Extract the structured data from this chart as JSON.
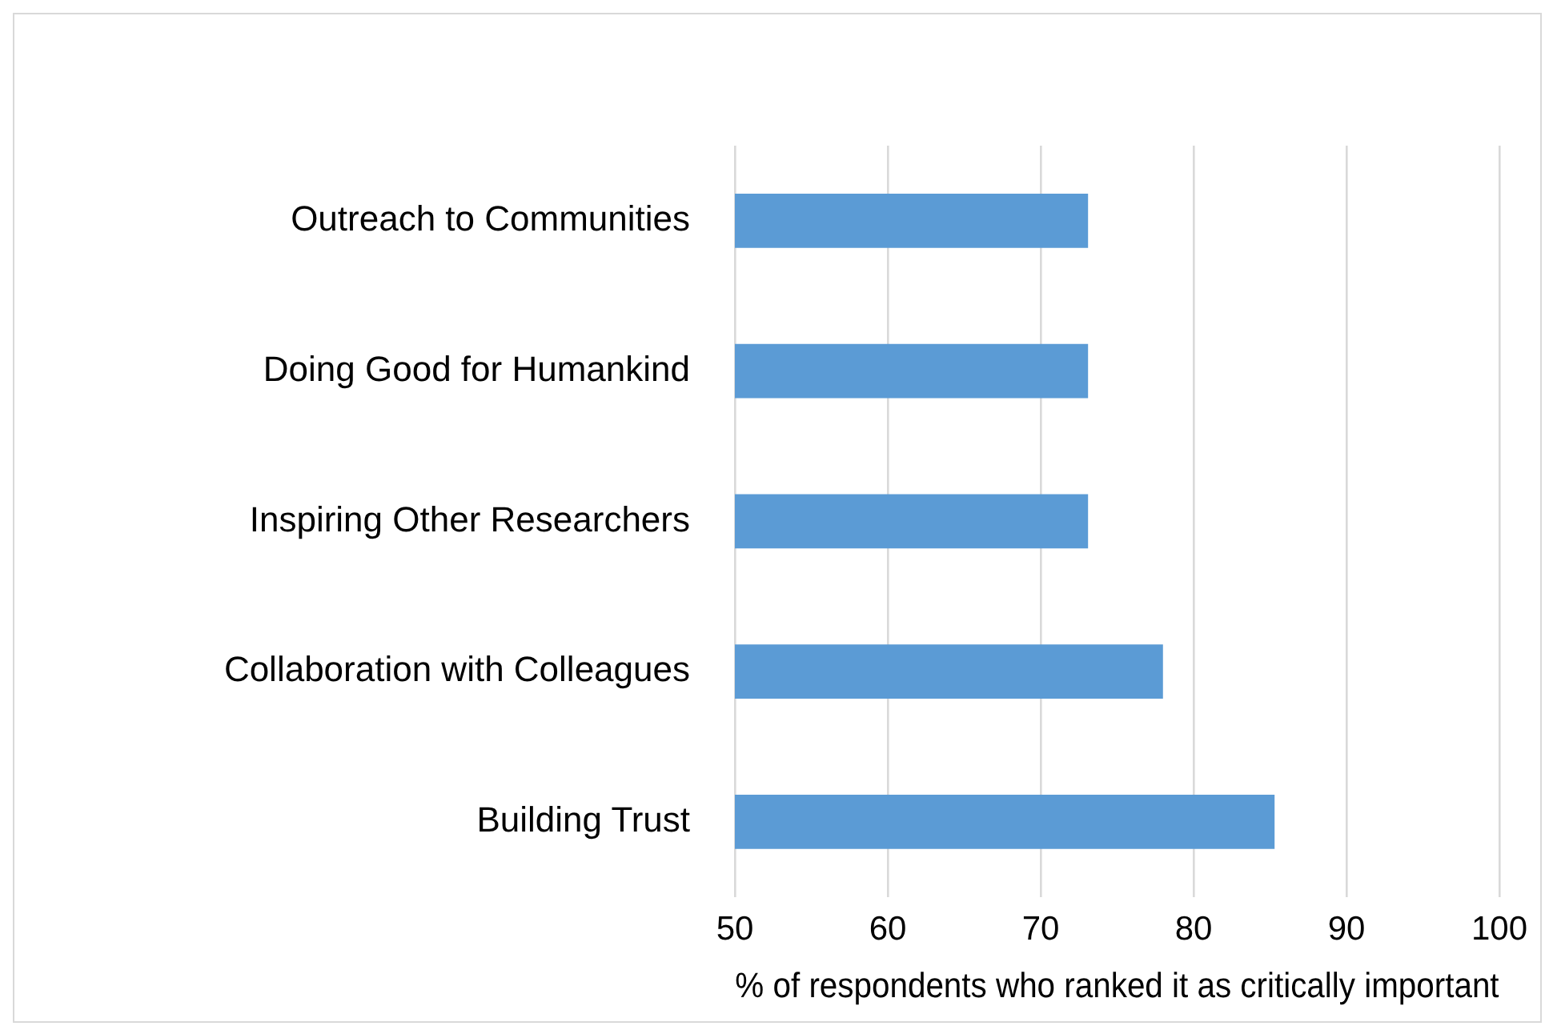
{
  "chart_data": {
    "type": "bar",
    "orientation": "horizontal",
    "categories": [
      "Outreach to Communities",
      "Doing Good for Humankind",
      "Inspiring Other Researchers",
      "Collaboration with Colleagues",
      "Building Trust"
    ],
    "values": [
      73.1,
      73.1,
      73.1,
      78,
      85.3
    ],
    "color": "#5b9bd5",
    "xlabel": "% of respondents who ranked it as critically important",
    "xlim": [
      50,
      100
    ],
    "xticks": [
      50,
      60,
      70,
      80,
      90,
      100
    ],
    "grid": "x"
  }
}
